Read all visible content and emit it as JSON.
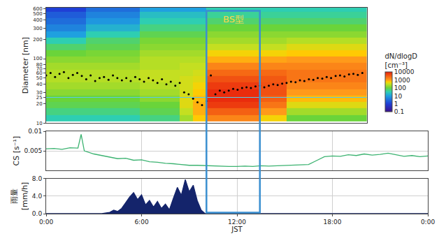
{
  "chart_data": [
    {
      "type": "heatmap",
      "ylabel": "Diameter [nm]",
      "log": "y",
      "tick_labels": "y",
      "grid": false,
      "xlim": [
        0,
        24
      ],
      "ylim": [
        10,
        620
      ],
      "yticks": [
        10,
        20,
        25,
        30,
        40,
        50,
        60,
        70,
        80,
        100,
        200,
        300,
        400,
        500,
        600
      ],
      "x": [
        0.5,
        1.5,
        2.5,
        3.5,
        4.5,
        5.5,
        6.5,
        7.5,
        8.5,
        9.5,
        10.5,
        11.5,
        12.5,
        13.5,
        14.5,
        15.5,
        16.5,
        17.5,
        18.5,
        19.5,
        20.5,
        21.5,
        22.5,
        23.5
      ],
      "y": [
        12,
        15,
        19,
        24,
        30,
        38,
        48,
        60,
        76,
        96,
        120,
        150,
        190,
        240,
        300,
        380,
        480,
        600
      ],
      "cells": [
        [
          30,
          30,
          30,
          30,
          30,
          30,
          30,
          50,
          50,
          50,
          200,
          600,
          1500,
          1500,
          1500,
          1500,
          500,
          500,
          100,
          100,
          100,
          100,
          100,
          100
        ],
        [
          50,
          50,
          50,
          50,
          50,
          50,
          50,
          80,
          80,
          80,
          300,
          800,
          3000,
          3000,
          3000,
          3000,
          1000,
          1000,
          200,
          200,
          200,
          200,
          200,
          200
        ],
        [
          80,
          80,
          80,
          80,
          80,
          80,
          80,
          100,
          100,
          100,
          400,
          800,
          6000,
          6000,
          6000,
          6000,
          2000,
          2000,
          400,
          400,
          400,
          400,
          400,
          400
        ],
        [
          100,
          100,
          100,
          100,
          100,
          100,
          100,
          150,
          150,
          150,
          400,
          700,
          8000,
          8000,
          8000,
          8000,
          3000,
          3000,
          700,
          700,
          700,
          700,
          700,
          700
        ],
        [
          150,
          150,
          150,
          150,
          150,
          150,
          150,
          200,
          200,
          200,
          350,
          600,
          8000,
          8000,
          8000,
          8000,
          4000,
          4000,
          1000,
          1000,
          1000,
          1000,
          1000,
          1000
        ],
        [
          200,
          200,
          200,
          200,
          200,
          200,
          200,
          250,
          250,
          250,
          350,
          500,
          6000,
          6000,
          6000,
          6000,
          4000,
          4000,
          1500,
          1500,
          1500,
          1500,
          1500,
          1500
        ],
        [
          250,
          250,
          250,
          250,
          250,
          250,
          250,
          300,
          300,
          300,
          350,
          400,
          4000,
          4000,
          4000,
          4000,
          3500,
          3500,
          2000,
          2000,
          2000,
          2000,
          2000,
          2000
        ],
        [
          250,
          250,
          250,
          250,
          250,
          250,
          250,
          300,
          300,
          300,
          300,
          350,
          2500,
          2500,
          2500,
          2500,
          2500,
          2500,
          2000,
          2000,
          2000,
          2000,
          2000,
          2000
        ],
        [
          200,
          200,
          200,
          200,
          200,
          200,
          200,
          250,
          250,
          250,
          300,
          300,
          1500,
          1500,
          1500,
          1500,
          1500,
          1500,
          1500,
          1500,
          1500,
          1500,
          1500,
          1500
        ],
        [
          150,
          150,
          150,
          150,
          150,
          150,
          150,
          250,
          250,
          250,
          250,
          250,
          800,
          800,
          800,
          800,
          900,
          900,
          1000,
          1000,
          1000,
          1000,
          1000,
          1000
        ],
        [
          100,
          100,
          100,
          120,
          120,
          120,
          120,
          200,
          200,
          200,
          200,
          200,
          500,
          500,
          500,
          500,
          500,
          500,
          600,
          600,
          600,
          600,
          600,
          600
        ],
        [
          60,
          60,
          60,
          80,
          80,
          80,
          80,
          150,
          150,
          150,
          150,
          150,
          300,
          300,
          300,
          300,
          300,
          300,
          400,
          400,
          400,
          400,
          400,
          400
        ],
        [
          30,
          30,
          30,
          60,
          60,
          60,
          60,
          120,
          120,
          120,
          120,
          120,
          200,
          200,
          200,
          200,
          200,
          200,
          250,
          250,
          250,
          250,
          250,
          250
        ],
        [
          10,
          10,
          10,
          30,
          30,
          30,
          30,
          80,
          80,
          80,
          80,
          80,
          150,
          150,
          150,
          150,
          150,
          150,
          150,
          150,
          150,
          150,
          150,
          150
        ],
        [
          5,
          5,
          5,
          15,
          15,
          15,
          15,
          50,
          50,
          50,
          50,
          50,
          100,
          100,
          100,
          100,
          100,
          100,
          100,
          100,
          100,
          100,
          100,
          100
        ],
        [
          3,
          3,
          3,
          8,
          8,
          8,
          8,
          30,
          30,
          30,
          30,
          30,
          60,
          60,
          60,
          60,
          60,
          60,
          60,
          60,
          60,
          60,
          60,
          60
        ],
        [
          2,
          2,
          2,
          5,
          5,
          5,
          5,
          20,
          20,
          20,
          20,
          20,
          40,
          40,
          40,
          40,
          40,
          40,
          40,
          40,
          40,
          40,
          40,
          40
        ],
        [
          1,
          1,
          1,
          3,
          3,
          3,
          3,
          10,
          10,
          10,
          10,
          10,
          30,
          30,
          30,
          30,
          30,
          30,
          30,
          30,
          30,
          30,
          30,
          30
        ]
      ],
      "colorbar": {
        "title": "dN/dlogD [cm⁻³]",
        "range": [
          0.1,
          10000
        ],
        "ticks": [
          0.1,
          1,
          10,
          100,
          1000,
          10000
        ]
      },
      "series": [
        {
          "type": "scatter",
          "color": "#000000",
          "marker": "circle",
          "x": [
            0,
            0.33,
            0.67,
            1,
            1.33,
            1.67,
            2,
            2.33,
            2.67,
            3,
            3.33,
            3.67,
            4,
            4.33,
            4.67,
            5,
            5.33,
            5.67,
            6,
            6.33,
            6.67,
            7,
            7.33,
            7.67,
            8,
            8.33,
            8.67,
            9,
            9.33,
            9.67,
            10,
            10.33,
            10.67,
            11,
            11.33,
            11.67,
            12,
            12.33,
            12.67,
            13,
            13.33,
            13.67,
            14,
            14.33,
            14.67,
            15,
            15.33,
            15.67,
            16,
            16.33,
            16.67,
            17,
            17.33,
            17.67,
            18,
            18.33,
            18.67,
            19,
            19.33,
            19.67,
            20,
            20.33,
            20.67,
            21,
            21.33,
            21.67,
            22,
            22.33,
            22.67,
            23,
            23.33,
            23.67
          ],
          "values": [
            55,
            60,
            52,
            58,
            62,
            50,
            56,
            60,
            54,
            48,
            55,
            45,
            50,
            52,
            47,
            55,
            50,
            46,
            50,
            45,
            52,
            48,
            44,
            50,
            46,
            42,
            48,
            40,
            44,
            38,
            42,
            30,
            28,
            24,
            21,
            19,
            22,
            55,
            28,
            32,
            30,
            32,
            34,
            33,
            35,
            36,
            35,
            37,
            38,
            36,
            38,
            40,
            39,
            41,
            42,
            44,
            43,
            46,
            45,
            48,
            47,
            50,
            49,
            52,
            50,
            54,
            55,
            53,
            57,
            58,
            56,
            60
          ]
        }
      ],
      "hline": {
        "y": 25,
        "color": "#5bc8e8"
      },
      "highlight": {
        "text": "BS型",
        "x": [
          12,
          16
        ],
        "color": "#3a8fd0"
      }
    },
    {
      "type": "line",
      "ylabel": "CS [s⁻¹]",
      "tick_labels": "y",
      "grid": true,
      "color": "#3cb371",
      "xlim": [
        0,
        24
      ],
      "xticks": [
        0,
        6,
        12,
        18,
        24
      ],
      "ylim": [
        0,
        0.01
      ],
      "yticks": [
        0.005,
        0.01
      ],
      "x": [
        0,
        0.5,
        1,
        1.5,
        2,
        2.2,
        2.4,
        3,
        3.5,
        4,
        4.5,
        5,
        5.5,
        6,
        6.5,
        7,
        7.5,
        8,
        8.5,
        9,
        9.5,
        10,
        10.5,
        11,
        11.5,
        12,
        12.5,
        13,
        13.5,
        14,
        14.5,
        15,
        15.5,
        16,
        16.5,
        17,
        17.5,
        18,
        18.5,
        19,
        19.5,
        20,
        20.5,
        21,
        21.5,
        22,
        22.5,
        23,
        23.5,
        24
      ],
      "values": [
        0.0055,
        0.0056,
        0.0054,
        0.0058,
        0.0057,
        0.0092,
        0.005,
        0.0042,
        0.0038,
        0.0034,
        0.003,
        0.0031,
        0.0026,
        0.0027,
        0.0022,
        0.0021,
        0.0018,
        0.0017,
        0.0015,
        0.0013,
        0.0013,
        0.0012,
        0.0011,
        0.0011,
        0.001,
        0.001,
        0.0011,
        0.001,
        0.0012,
        0.0011,
        0.0012,
        0.0012,
        0.0013,
        0.0014,
        0.0015,
        0.0025,
        0.0035,
        0.0037,
        0.0036,
        0.004,
        0.0038,
        0.0042,
        0.0039,
        0.0041,
        0.0044,
        0.004,
        0.0036,
        0.0038,
        0.0035,
        0.0037
      ]
    },
    {
      "type": "area",
      "ylabel": "雨量 [mm/h]",
      "xlabel": "JST",
      "grid": true,
      "color": "#14246b",
      "xlim": [
        0,
        24
      ],
      "xticks": [
        {
          "value": 0,
          "label": "0:00"
        },
        {
          "value": 6,
          "label": "6:00"
        },
        {
          "value": 12,
          "label": "12:00"
        },
        {
          "value": 18,
          "label": "18:00"
        },
        {
          "value": 24,
          "label": "0:00"
        }
      ],
      "ylim": [
        0,
        8
      ],
      "yticks": [
        {
          "value": 0,
          "label": "0.0"
        },
        {
          "value": 4,
          "label": "4.0"
        },
        {
          "value": 8,
          "label": "8.0"
        }
      ],
      "x": [
        0,
        3.5,
        4,
        4.25,
        4.5,
        4.75,
        5,
        5.25,
        5.5,
        5.75,
        6,
        6.25,
        6.5,
        6.75,
        7,
        7.25,
        7.5,
        7.75,
        8,
        8.25,
        8.5,
        8.75,
        9,
        9.25,
        9.5,
        9.75,
        10,
        24
      ],
      "values": [
        0,
        0,
        0.3,
        0.8,
        0.5,
        1.2,
        2.5,
        3.8,
        4.8,
        3.2,
        4.3,
        2,
        3,
        1.5,
        2.8,
        1.2,
        2.2,
        0.9,
        3.5,
        6,
        4.2,
        7.8,
        5,
        6.5,
        3,
        0.8,
        0,
        0
      ]
    }
  ]
}
